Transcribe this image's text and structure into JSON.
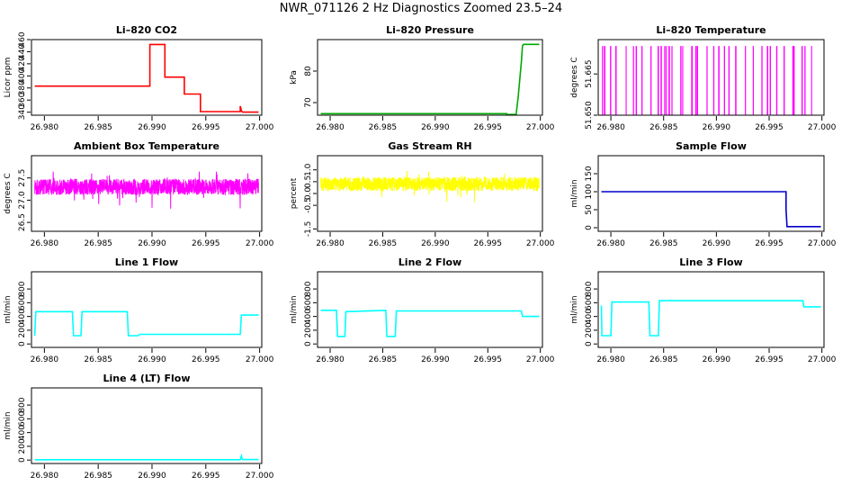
{
  "page": {
    "title": "NWR_071126  2 Hz Diagnostics Zoomed 23.5–24"
  },
  "x_axis": {
    "range": [
      26.9788,
      27.0002
    ],
    "ticks": [
      26.98,
      26.985,
      26.99,
      26.995,
      27.0
    ],
    "tick_labels": [
      "26.980",
      "26.985",
      "26.990",
      "26.995",
      "27.000"
    ]
  },
  "chart_data": [
    {
      "type": "line",
      "title": "Li–820 CO2",
      "ylabel": "Licor ppm",
      "color": "#ff0000",
      "ylim": [
        335,
        460
      ],
      "yticks": [
        340,
        360,
        380,
        400,
        420,
        440,
        460
      ],
      "style": "step",
      "series": [
        {
          "x": [
            26.9791,
            26.9898,
            26.9898,
            26.9912,
            26.9912,
            26.993,
            26.993,
            26.9945,
            26.9945,
            26.9982,
            26.9982,
            26.9983,
            26.9984,
            26.9999
          ],
          "values": [
            383,
            383,
            452,
            452,
            398,
            398,
            370,
            370,
            341,
            341,
            350,
            343,
            340,
            340
          ]
        }
      ]
    },
    {
      "type": "line",
      "title": "Li–820 Pressure",
      "ylabel": "kPa",
      "color": "#00aa00",
      "ylim": [
        66,
        90
      ],
      "yticks": [
        70,
        80
      ],
      "style": "step",
      "series": [
        {
          "x": [
            26.9791,
            26.9968,
            26.9968,
            26.9977,
            26.9979,
            26.9982,
            26.9983,
            26.9984,
            26.9999
          ],
          "values": [
            66.5,
            66.5,
            66.2,
            66.3,
            72,
            83,
            88,
            88.5,
            88.5
          ]
        }
      ]
    },
    {
      "type": "line",
      "title": "Li–820 Temperature",
      "ylabel": "degrees C",
      "color": "#ff00ff",
      "ylim": [
        51.65,
        51.6775
      ],
      "yticks": [
        51.65,
        51.665
      ],
      "tick_labels": [
        "51.650",
        "51.665"
      ],
      "style": "binary",
      "low": 51.65,
      "high": 51.675,
      "series": [
        {
          "x": [],
          "values": []
        }
      ]
    },
    {
      "type": "line",
      "title": "Ambient Box Temperature",
      "ylabel": "degrees C",
      "color": "#ff00ff",
      "ylim": [
        26.3,
        28.0
      ],
      "yticks": [
        26.5,
        27.0,
        27.5
      ],
      "tick_labels": [
        "26.5",
        "27.0",
        "27.5"
      ],
      "style": "noise",
      "mean": 27.3,
      "spread": 0.18,
      "series": [
        {
          "x": [],
          "values": []
        }
      ]
    },
    {
      "type": "line",
      "title": "Gas Stream RH",
      "ylabel": "percent",
      "color": "#ffff00",
      "ylim": [
        -1.6,
        1.6
      ],
      "yticks": [
        -1.5,
        -0.5,
        0.0,
        0.5,
        1.0
      ],
      "tick_labels": [
        "-1.5",
        "-0.5",
        "0.0",
        "0.5",
        "1.0"
      ],
      "style": "noise",
      "mean": 0.4,
      "spread": 0.3,
      "series": [
        {
          "x": [],
          "values": []
        }
      ]
    },
    {
      "type": "line",
      "title": "Sample Flow",
      "ylabel": "ml/min",
      "color": "#0000cc",
      "ylim": [
        -10,
        200
      ],
      "yticks": [
        0,
        50,
        100,
        150
      ],
      "style": "step",
      "series": [
        {
          "x": [
            26.9791,
            26.9966,
            26.9966,
            26.9967,
            26.9999
          ],
          "values": [
            100,
            100,
            50,
            3,
            3
          ]
        }
      ]
    },
    {
      "type": "line",
      "title": "Line 1 Flow",
      "ylabel": "ml/min",
      "color": "#00ffff",
      "ylim": [
        -50,
        1050
      ],
      "yticks": [
        0,
        200,
        400,
        600,
        800
      ],
      "style": "step",
      "series": [
        {
          "x": [
            26.9791,
            26.9792,
            26.9826,
            26.9827,
            26.9834,
            26.9835,
            26.9877,
            26.9878,
            26.9887,
            26.9889,
            26.9982,
            26.9983,
            26.9999
          ],
          "values": [
            120,
            470,
            470,
            120,
            120,
            470,
            470,
            120,
            120,
            140,
            140,
            420,
            420
          ]
        }
      ]
    },
    {
      "type": "line",
      "title": "Line 2 Flow",
      "ylabel": "ml/min",
      "color": "#00ffff",
      "ylim": [
        -50,
        1050
      ],
      "yticks": [
        0,
        200,
        400,
        600,
        800
      ],
      "style": "step",
      "series": [
        {
          "x": [
            26.9791,
            26.9806,
            26.9807,
            26.9814,
            26.9815,
            26.9853,
            26.9854,
            26.9862,
            26.9863,
            26.9982,
            26.9983,
            26.9999
          ],
          "values": [
            490,
            490,
            110,
            110,
            470,
            490,
            110,
            110,
            480,
            480,
            400,
            400
          ]
        }
      ]
    },
    {
      "type": "line",
      "title": "Line 3 Flow",
      "ylabel": "ml/min",
      "color": "#00ffff",
      "ylim": [
        -50,
        1050
      ],
      "yticks": [
        0,
        200,
        400,
        600,
        800
      ],
      "style": "step",
      "series": [
        {
          "x": [
            26.9791,
            26.97915,
            26.9792,
            26.98,
            26.9801,
            26.9836,
            26.9837,
            26.9845,
            26.9846,
            26.9982,
            26.9983,
            26.9999
          ],
          "values": [
            560,
            120,
            120,
            120,
            610,
            610,
            120,
            120,
            630,
            630,
            540,
            540
          ]
        }
      ]
    },
    {
      "type": "line",
      "title": "Line 4 (LT) Flow",
      "ylabel": "ml/min",
      "color": "#00ffff",
      "ylim": [
        -50,
        1050
      ],
      "yticks": [
        0,
        200,
        400,
        600,
        800
      ],
      "style": "step",
      "series": [
        {
          "x": [
            26.9791,
            26.9982,
            26.9983,
            26.9984,
            26.9999
          ],
          "values": [
            5,
            5,
            60,
            8,
            8
          ]
        }
      ]
    }
  ]
}
